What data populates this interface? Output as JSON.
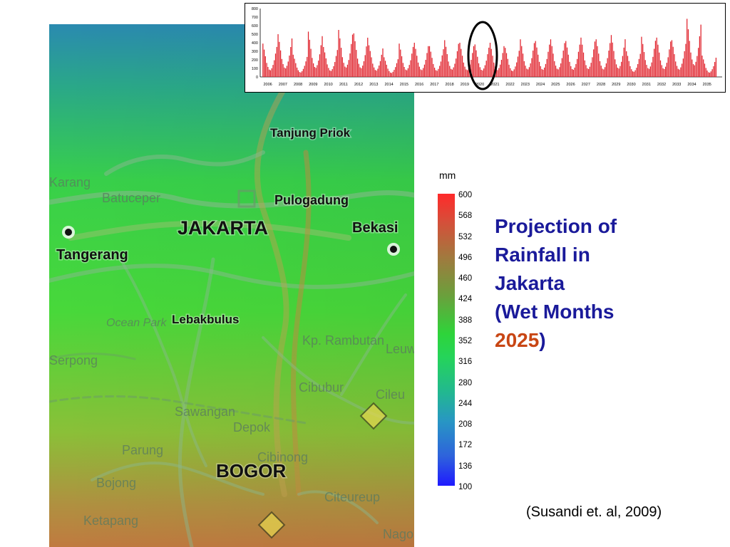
{
  "map": {
    "places_main": [
      {
        "id": "jakarta",
        "label": "JAKARTA"
      },
      {
        "id": "bogor",
        "label": "BOGOR"
      },
      {
        "id": "tangerang",
        "label": "Tangerang"
      },
      {
        "id": "bekasi",
        "label": "Bekasi"
      },
      {
        "id": "pulogadung",
        "label": "Pulogadung"
      },
      {
        "id": "tanjung-priok",
        "label": "Tanjung Priok"
      },
      {
        "id": "lebakbulus",
        "label": "Lebakbulus"
      }
    ],
    "places_minor": [
      {
        "id": "batuceper",
        "label": "Batuceper"
      },
      {
        "id": "karang",
        "label": "Karang"
      },
      {
        "id": "ocean-park",
        "label": "Ocean Park"
      },
      {
        "id": "serpong",
        "label": "Serpong"
      },
      {
        "id": "kp-rambutan",
        "label": "Kp. Rambutan"
      },
      {
        "id": "leuw",
        "label": "Leuw"
      },
      {
        "id": "cibubur",
        "label": "Cibubur"
      },
      {
        "id": "cileu",
        "label": "Cileu"
      },
      {
        "id": "sawangan",
        "label": "Sawangan"
      },
      {
        "id": "depok",
        "label": "Depok"
      },
      {
        "id": "parung",
        "label": "Parung"
      },
      {
        "id": "cibinong",
        "label": "Cibinong"
      },
      {
        "id": "bojong",
        "label": "Bojong"
      },
      {
        "id": "ketapang",
        "label": "Ketapang"
      },
      {
        "id": "citeureup",
        "label": "Citeureup"
      },
      {
        "id": "nago",
        "label": "Nago"
      }
    ]
  },
  "legend": {
    "unit": "mm",
    "labels": [
      "600",
      "568",
      "532",
      "496",
      "460",
      "424",
      "388",
      "352",
      "316",
      "280",
      "244",
      "208",
      "172",
      "136",
      "100"
    ]
  },
  "title": {
    "line1": "Projection of",
    "line2": "Rainfall in",
    "line3": "Jakarta",
    "line4a": "(Wet Months",
    "year": "2025",
    "line5b": ")"
  },
  "citation": "(Susandi et. al, 2009)",
  "chart_data": {
    "type": "bar",
    "ylim": [
      0,
      800
    ],
    "yticks": [
      0,
      100,
      200,
      300,
      400,
      500,
      600,
      700,
      800
    ],
    "x_labels": [
      "2006",
      "2007",
      "2008",
      "2009",
      "2010",
      "2011",
      "2012",
      "2013",
      "2014",
      "2015",
      "2016",
      "2017",
      "2018",
      "2019",
      "2020",
      "2021",
      "2022",
      "2023",
      "2024",
      "2025",
      "2026",
      "2027",
      "2028",
      "2029",
      "2030",
      "2031",
      "2032",
      "2033",
      "2034",
      "2035"
    ],
    "annual_peak_monthly_rainfall": [
      390,
      500,
      260,
      530,
      350,
      550,
      510,
      370,
      230,
      390,
      400,
      360,
      430,
      400,
      380,
      400,
      340,
      440,
      420,
      440,
      420,
      460,
      440,
      490,
      300,
      470,
      460,
      430,
      680,
      250
    ],
    "bar_color": "#e0202a",
    "highlight_circle_year": "2020"
  }
}
